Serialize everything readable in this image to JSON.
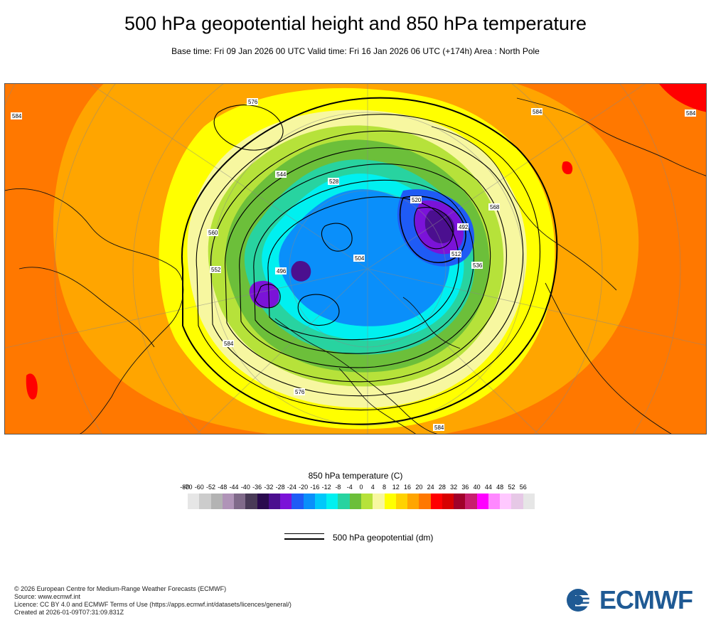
{
  "header": {
    "title": "500 hPa geopotential height and 850 hPa temperature",
    "subtitle": "Base time: Fri 09 Jan 2026 00 UTC Valid time: Fri 16 Jan 2026 06 UTC (+174h) Area : North Pole"
  },
  "map": {
    "contour_labels": [
      "584",
      "584",
      "584",
      "584",
      "576",
      "576",
      "568",
      "560",
      "552",
      "544",
      "536",
      "528",
      "520",
      "512",
      "504",
      "496",
      "492",
      "584"
    ]
  },
  "legend": {
    "title": "850 hPa temperature (C)",
    "ticks": [
      "-80",
      "-70",
      "-60",
      "-52",
      "-48",
      "-44",
      "-40",
      "-36",
      "-32",
      "-28",
      "-24",
      "-20",
      "-16",
      "-12",
      "-8",
      "-4",
      "0",
      "4",
      "8",
      "12",
      "16",
      "20",
      "24",
      "28",
      "32",
      "36",
      "40",
      "44",
      "48",
      "52",
      "56"
    ],
    "colors": [
      "#e6e6e6",
      "#cccccc",
      "#b3b3b3",
      "#b094b8",
      "#806a8a",
      "#493a57",
      "#2a0a4e",
      "#4b0f8f",
      "#7b13d8",
      "#1f5bf5",
      "#0a8ffa",
      "#00c8fa",
      "#00f0f0",
      "#28d3a0",
      "#6cbf3a",
      "#b6e23a",
      "#f7f7a0",
      "#ffff00",
      "#ffd200",
      "#ffa500",
      "#ff7800",
      "#ff0000",
      "#d70000",
      "#a0002a",
      "#c81e6e",
      "#ff00ff",
      "#ff88ff",
      "#ffc8ff",
      "#e6c8e6",
      "#e6e6e6"
    ],
    "contour_label": "500 hPa geopotential (dm)"
  },
  "footer": {
    "lines": [
      "© 2026 European Centre for Medium-Range Weather Forecasts (ECMWF)",
      "Source: www.ecmwf.int",
      "Licence: CC BY 4.0 and ECMWF Terms of Use (https://apps.ecmwf.int/datasets/licences/general/)",
      "Created at 2026-01-09T07:31:09.831Z"
    ]
  },
  "logo": {
    "text": "ECMWF",
    "color": "#1f5a94"
  }
}
